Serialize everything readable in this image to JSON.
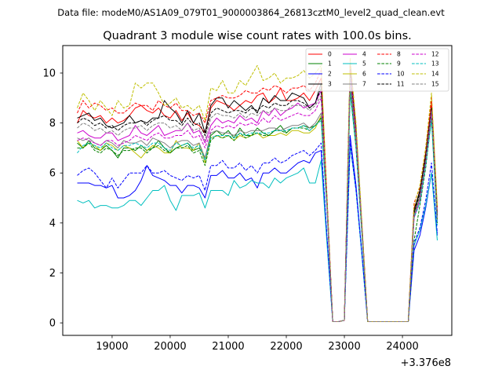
{
  "figure": {
    "suptitle": "Data file: modeM0/AS1A09_079T01_9000003864_26813cztM0_level2_quad_clean.evt"
  },
  "chart_data": {
    "type": "line",
    "title": "Quadrant 3 module wise count rates with 100.0s bins.",
    "xlabel": "",
    "ylabel": "",
    "x_offset_label": "+3.376e8",
    "xlim": [
      18150,
      24850
    ],
    "ylim": [
      -0.5,
      11.1
    ],
    "x_ticks": [
      19000,
      20000,
      21000,
      22000,
      23000,
      24000
    ],
    "x_tick_labels": [
      "19000",
      "20000",
      "21000",
      "22000",
      "23000",
      "24000"
    ],
    "y_ticks": [
      0,
      2,
      4,
      6,
      8,
      10
    ],
    "y_tick_labels": [
      "0",
      "2",
      "4",
      "6",
      "8",
      "10"
    ],
    "grid": false,
    "legend_position": "top-right",
    "x": [
      18400,
      18500,
      18600,
      18700,
      18800,
      18900,
      19000,
      19100,
      19200,
      19300,
      19400,
      19500,
      19600,
      19700,
      19800,
      19900,
      20000,
      20100,
      20200,
      20300,
      20400,
      20500,
      20600,
      20700,
      20800,
      20900,
      21000,
      21100,
      21200,
      21300,
      21400,
      21500,
      21600,
      21700,
      21800,
      21900,
      22000,
      22100,
      22200,
      22300,
      22400,
      22500,
      22600,
      22700,
      22800,
      22900,
      23000,
      23100,
      23200,
      23300,
      23400,
      23500,
      23600,
      23700,
      23800,
      23900,
      24000,
      24100,
      24200,
      24300,
      24400,
      24500,
      24600
    ],
    "series": [
      {
        "name": "0",
        "color": "#ff0000",
        "dash": "solid",
        "values": [
          8.0,
          8.5,
          8.3,
          8.2,
          8.3,
          8.0,
          8.2,
          8.0,
          8.1,
          8.3,
          8.6,
          8.7,
          8.5,
          8.4,
          8.6,
          8.3,
          8.2,
          8.5,
          8.1,
          8.4,
          8.0,
          7.9,
          7.6,
          8.6,
          8.9,
          8.8,
          8.7,
          8.5,
          8.7,
          8.9,
          8.8,
          9.1,
          9.2,
          8.8,
          9.0,
          9.4,
          8.9,
          8.9,
          9.0,
          9.2,
          8.9,
          9.3,
          9.8,
          5.0,
          0.05,
          0.05,
          0.1,
          10.0,
          7.5,
          4.0,
          0.05,
          0.05,
          0.05,
          0.05,
          0.05,
          0.05,
          0.05,
          0.05,
          4.6,
          5.2,
          6.8,
          8.8,
          4.4
        ]
      },
      {
        "name": "1",
        "color": "#008000",
        "dash": "solid",
        "values": [
          7.2,
          7.0,
          7.3,
          7.0,
          6.9,
          7.1,
          6.9,
          6.6,
          7.0,
          7.0,
          6.9,
          7.1,
          6.9,
          7.0,
          7.3,
          7.0,
          6.8,
          7.0,
          7.1,
          7.2,
          6.9,
          7.0,
          6.6,
          7.5,
          7.7,
          7.5,
          7.7,
          7.4,
          7.8,
          7.5,
          7.5,
          7.8,
          7.6,
          7.5,
          7.7,
          7.9,
          7.6,
          7.8,
          7.8,
          7.9,
          7.8,
          7.9,
          8.2,
          4.8,
          0.05,
          0.05,
          0.1,
          9.6,
          7.2,
          3.8,
          0.05,
          0.05,
          0.05,
          0.05,
          0.05,
          0.05,
          0.05,
          0.05,
          4.4,
          5.1,
          6.5,
          8.4,
          4.2
        ]
      },
      {
        "name": "2",
        "color": "#0000ff",
        "dash": "solid",
        "values": [
          5.6,
          5.6,
          5.6,
          5.5,
          5.5,
          5.4,
          5.5,
          5.0,
          5.0,
          5.1,
          5.3,
          5.7,
          6.3,
          5.9,
          5.8,
          5.7,
          5.5,
          5.5,
          5.2,
          5.5,
          5.5,
          5.4,
          5.0,
          5.9,
          5.9,
          6.1,
          5.8,
          5.8,
          6.0,
          5.7,
          5.8,
          5.4,
          6.0,
          6.0,
          6.2,
          6.0,
          6.0,
          6.2,
          6.4,
          6.5,
          6.4,
          6.8,
          6.9,
          3.4,
          0.05,
          0.05,
          0.1,
          7.5,
          5.5,
          2.8,
          0.05,
          0.05,
          0.05,
          0.05,
          0.05,
          0.05,
          0.05,
          0.05,
          2.9,
          3.5,
          4.6,
          6.0,
          3.5
        ]
      },
      {
        "name": "3",
        "color": "#000000",
        "dash": "solid",
        "values": [
          8.2,
          8.3,
          8.4,
          8.1,
          8.2,
          7.9,
          7.8,
          7.9,
          8.0,
          8.3,
          8.0,
          8.1,
          8.0,
          8.2,
          8.2,
          8.9,
          8.6,
          8.4,
          8.0,
          8.5,
          8.0,
          8.4,
          7.6,
          8.7,
          9.0,
          9.0,
          8.6,
          8.9,
          8.7,
          8.5,
          8.7,
          8.4,
          9.0,
          8.8,
          9.1,
          8.9,
          8.9,
          9.2,
          9.1,
          9.0,
          8.6,
          8.8,
          9.6,
          4.9,
          0.05,
          0.05,
          0.1,
          10.4,
          7.8,
          3.9,
          0.05,
          0.05,
          0.05,
          0.05,
          0.05,
          0.05,
          0.05,
          0.05,
          4.5,
          5.3,
          6.7,
          8.6,
          4.3
        ]
      },
      {
        "name": "4",
        "color": "#cc00cc",
        "dash": "solid",
        "values": [
          7.6,
          7.7,
          7.5,
          7.4,
          7.4,
          7.6,
          7.6,
          7.3,
          7.4,
          7.5,
          7.9,
          7.6,
          7.5,
          7.7,
          7.9,
          7.5,
          7.6,
          7.7,
          7.7,
          8.0,
          7.6,
          7.7,
          7.2,
          7.9,
          8.2,
          8.0,
          8.1,
          8.0,
          8.3,
          8.1,
          8.2,
          8.0,
          8.5,
          8.3,
          8.6,
          8.3,
          8.5,
          8.6,
          8.8,
          8.6,
          8.7,
          8.8,
          9.3,
          4.8,
          0.05,
          0.05,
          0.1,
          10.1,
          7.6,
          3.9,
          0.05,
          0.05,
          0.05,
          0.05,
          0.05,
          0.05,
          0.05,
          0.05,
          4.2,
          5.0,
          6.5,
          8.5,
          4.1
        ]
      },
      {
        "name": "5",
        "color": "#00bfbf",
        "dash": "solid",
        "values": [
          4.9,
          4.8,
          4.9,
          4.6,
          4.7,
          4.7,
          4.6,
          4.6,
          4.7,
          4.9,
          4.9,
          4.7,
          5.0,
          5.3,
          5.3,
          5.5,
          4.9,
          4.5,
          5.1,
          5.1,
          5.1,
          5.2,
          4.6,
          5.3,
          5.3,
          5.3,
          5.1,
          5.7,
          5.4,
          5.5,
          5.7,
          5.6,
          5.6,
          5.4,
          5.8,
          5.6,
          5.8,
          5.9,
          6.0,
          6.2,
          5.6,
          5.6,
          6.5,
          3.2,
          0.05,
          0.05,
          0.1,
          7.1,
          5.3,
          2.7,
          0.05,
          0.05,
          0.05,
          0.05,
          0.05,
          0.05,
          0.05,
          0.05,
          3.1,
          3.7,
          4.7,
          6.0,
          3.3
        ]
      },
      {
        "name": "6",
        "color": "#bfbf00",
        "dash": "solid",
        "values": [
          7.3,
          7.0,
          7.2,
          7.1,
          6.9,
          7.2,
          7.1,
          6.9,
          7.1,
          7.0,
          6.8,
          6.6,
          6.9,
          7.1,
          7.0,
          6.8,
          6.8,
          7.3,
          7.0,
          7.0,
          6.9,
          7.2,
          6.4,
          7.4,
          7.5,
          7.4,
          7.5,
          7.3,
          7.5,
          7.4,
          7.5,
          7.6,
          7.4,
          7.5,
          7.5,
          7.6,
          7.5,
          7.7,
          7.7,
          7.6,
          7.6,
          7.8,
          8.3,
          4.7,
          0.05,
          0.05,
          0.1,
          9.4,
          7.1,
          3.7,
          0.05,
          0.05,
          0.05,
          0.05,
          0.05,
          0.05,
          0.05,
          0.05,
          4.3,
          5.0,
          6.4,
          8.3,
          4.1
        ]
      },
      {
        "name": "7",
        "color": "#808080",
        "dash": "solid",
        "values": [
          7.4,
          7.3,
          7.4,
          7.2,
          7.1,
          7.3,
          7.2,
          7.0,
          7.3,
          7.2,
          7.2,
          7.3,
          7.1,
          7.4,
          7.3,
          7.2,
          7.0,
          7.2,
          7.3,
          7.3,
          7.1,
          7.2,
          6.6,
          7.6,
          7.7,
          7.6,
          7.6,
          7.5,
          7.7,
          7.6,
          7.7,
          7.7,
          7.7,
          7.8,
          7.8,
          7.7,
          7.8,
          7.9,
          7.9,
          8.0,
          7.8,
          8.0,
          8.4,
          4.7,
          0.05,
          0.05,
          0.1,
          9.5,
          7.1,
          3.7,
          0.05,
          0.05,
          0.05,
          0.05,
          0.05,
          0.05,
          0.05,
          0.05,
          4.3,
          5.0,
          6.4,
          8.3,
          4.0
        ]
      },
      {
        "name": "8",
        "color": "#ff0000",
        "dash": "dashed",
        "values": [
          8.4,
          8.9,
          8.6,
          8.8,
          8.7,
          8.5,
          8.6,
          8.4,
          8.4,
          8.6,
          8.8,
          8.7,
          8.7,
          8.5,
          8.9,
          8.7,
          8.6,
          8.8,
          8.5,
          8.5,
          8.3,
          8.4,
          8.0,
          8.9,
          9.0,
          9.1,
          9.0,
          9.0,
          9.1,
          9.3,
          9.2,
          9.2,
          9.4,
          9.3,
          9.5,
          9.4,
          9.2,
          9.4,
          9.4,
          9.5,
          9.3,
          9.6,
          10.1,
          5.1,
          0.05,
          0.05,
          0.1,
          10.3,
          7.8,
          4.0,
          0.05,
          0.05,
          0.05,
          0.05,
          0.05,
          0.05,
          0.05,
          0.05,
          4.8,
          5.4,
          7.0,
          9.0,
          4.6
        ]
      },
      {
        "name": "9",
        "color": "#008000",
        "dash": "dashed",
        "values": [
          7.0,
          7.0,
          7.2,
          6.9,
          6.8,
          7.0,
          6.9,
          6.7,
          6.9,
          6.9,
          7.0,
          7.0,
          6.8,
          7.0,
          7.1,
          6.9,
          6.8,
          7.0,
          7.0,
          7.1,
          6.8,
          6.9,
          6.3,
          7.3,
          7.5,
          7.4,
          7.5,
          7.3,
          7.6,
          7.4,
          7.5,
          7.6,
          7.5,
          7.5,
          7.7,
          7.7,
          7.6,
          7.8,
          7.8,
          7.8,
          7.7,
          7.9,
          8.2,
          4.6,
          0.05,
          0.05,
          0.1,
          9.3,
          7.0,
          3.6,
          0.05,
          0.05,
          0.05,
          0.05,
          0.05,
          0.05,
          0.05,
          0.05,
          3.3,
          4.7,
          6.2,
          8.2,
          4.0
        ]
      },
      {
        "name": "10",
        "color": "#0000ff",
        "dash": "dashed",
        "values": [
          5.9,
          6.1,
          6.2,
          6.0,
          5.7,
          5.4,
          5.8,
          5.4,
          5.7,
          6.0,
          6.0,
          6.0,
          6.3,
          6.0,
          6.0,
          6.1,
          5.9,
          5.8,
          5.7,
          5.9,
          5.8,
          5.9,
          5.3,
          6.3,
          6.3,
          6.5,
          6.2,
          6.2,
          6.4,
          6.1,
          6.3,
          6.0,
          6.4,
          6.4,
          6.6,
          6.4,
          6.5,
          6.7,
          6.8,
          6.9,
          6.7,
          6.9,
          7.2,
          3.5,
          0.05,
          0.05,
          0.1,
          7.2,
          5.3,
          2.8,
          0.05,
          0.05,
          0.05,
          0.05,
          0.05,
          0.05,
          0.05,
          0.05,
          3.2,
          3.8,
          4.9,
          6.4,
          3.6
        ]
      },
      {
        "name": "11",
        "color": "#000000",
        "dash": "dashed",
        "values": [
          8.0,
          8.2,
          8.1,
          7.9,
          8.0,
          7.8,
          7.9,
          7.7,
          7.9,
          8.0,
          8.0,
          8.1,
          7.9,
          8.1,
          8.2,
          8.3,
          8.1,
          8.1,
          7.9,
          8.2,
          7.9,
          8.0,
          7.5,
          8.4,
          8.6,
          8.5,
          8.4,
          8.5,
          8.5,
          8.4,
          8.6,
          8.5,
          8.7,
          8.6,
          8.8,
          8.7,
          8.7,
          8.9,
          8.9,
          8.8,
          8.6,
          8.8,
          9.4,
          4.9,
          0.05,
          0.05,
          0.1,
          10.0,
          7.5,
          3.9,
          0.05,
          0.05,
          0.05,
          0.05,
          0.05,
          0.05,
          0.05,
          0.05,
          4.4,
          5.2,
          6.6,
          8.6,
          4.3
        ]
      },
      {
        "name": "12",
        "color": "#cc00cc",
        "dash": "dashed",
        "values": [
          7.3,
          7.4,
          7.3,
          7.2,
          7.1,
          7.3,
          7.3,
          7.1,
          7.2,
          7.3,
          7.5,
          7.4,
          7.3,
          7.5,
          7.6,
          7.4,
          7.4,
          7.5,
          7.5,
          7.7,
          7.4,
          7.5,
          7.0,
          7.7,
          7.9,
          7.8,
          7.9,
          7.8,
          8.0,
          7.9,
          8.0,
          7.9,
          8.2,
          8.0,
          8.3,
          8.1,
          8.2,
          8.3,
          8.4,
          8.3,
          8.3,
          8.5,
          9.0,
          4.7,
          0.05,
          0.05,
          0.1,
          9.8,
          7.4,
          3.8,
          0.05,
          0.05,
          0.05,
          0.05,
          0.05,
          0.05,
          0.05,
          0.05,
          4.2,
          4.9,
          6.4,
          8.4,
          4.1
        ]
      },
      {
        "name": "13",
        "color": "#00bfbf",
        "dash": "dashed",
        "values": [
          6.8,
          7.1,
          7.2,
          7.1,
          7.0,
          7.2,
          7.0,
          6.9,
          7.1,
          7.1,
          7.2,
          7.1,
          7.0,
          7.2,
          7.2,
          7.0,
          6.9,
          7.2,
          7.1,
          7.2,
          7.0,
          7.1,
          6.5,
          7.4,
          7.5,
          7.5,
          7.5,
          7.4,
          7.6,
          7.5,
          7.6,
          7.6,
          7.6,
          7.6,
          7.7,
          7.7,
          7.7,
          7.8,
          7.8,
          7.9,
          7.7,
          7.9,
          8.1,
          4.6,
          0.05,
          0.05,
          0.1,
          9.2,
          7.0,
          3.6,
          0.05,
          0.05,
          0.05,
          0.05,
          0.05,
          0.05,
          0.05,
          0.05,
          4.2,
          4.8,
          6.3,
          8.1,
          3.9
        ]
      },
      {
        "name": "14",
        "color": "#bfbf00",
        "dash": "dashed",
        "values": [
          8.6,
          9.2,
          8.9,
          8.5,
          8.9,
          8.6,
          8.3,
          8.9,
          8.6,
          8.7,
          9.6,
          9.4,
          9.6,
          9.6,
          9.2,
          8.7,
          8.8,
          9.0,
          8.6,
          8.7,
          8.5,
          8.7,
          8.1,
          9.4,
          9.3,
          9.7,
          9.2,
          9.2,
          9.7,
          9.5,
          9.9,
          10.3,
          9.7,
          9.8,
          10.0,
          9.6,
          9.8,
          9.8,
          9.9,
          10.1,
          9.8,
          10.0,
          10.3,
          5.1,
          0.05,
          0.05,
          0.1,
          10.6,
          8.0,
          4.1,
          0.05,
          0.05,
          0.05,
          0.05,
          0.05,
          0.05,
          0.05,
          0.05,
          4.7,
          5.5,
          7.0,
          9.2,
          4.7
        ]
      },
      {
        "name": "15",
        "color": "#808080",
        "dash": "dashed",
        "values": [
          7.8,
          8.0,
          7.9,
          7.7,
          7.8,
          7.6,
          7.7,
          7.5,
          7.7,
          7.8,
          7.8,
          7.9,
          7.7,
          7.9,
          8.0,
          8.0,
          7.8,
          7.9,
          7.7,
          8.0,
          7.7,
          7.8,
          7.3,
          8.2,
          8.4,
          8.3,
          8.3,
          8.2,
          8.4,
          8.2,
          8.4,
          8.3,
          8.5,
          8.4,
          8.6,
          8.5,
          8.5,
          8.7,
          8.7,
          8.7,
          8.5,
          8.7,
          9.1,
          4.8,
          0.05,
          0.05,
          0.1,
          9.8,
          7.4,
          3.8,
          0.05,
          0.05,
          0.05,
          0.05,
          0.05,
          0.05,
          0.05,
          0.05,
          4.3,
          5.1,
          6.5,
          8.5,
          4.2
        ]
      }
    ]
  }
}
